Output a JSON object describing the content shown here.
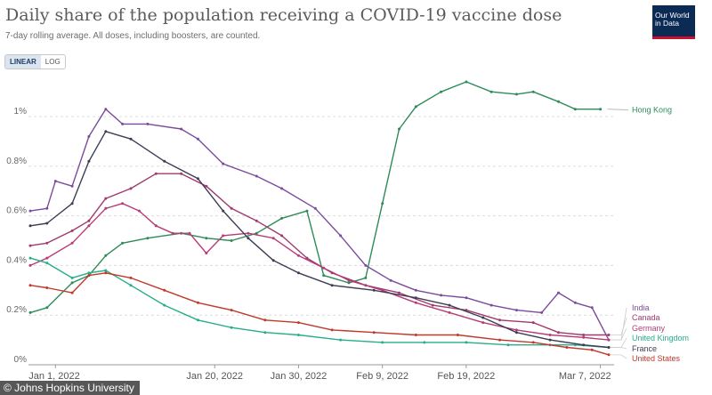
{
  "title": "Daily share of the population receiving a COVID-19 vaccine dose",
  "subtitle": "7-day rolling average. All doses, including boosters, are counted.",
  "logo": {
    "line1": "Our World",
    "line2": "in Data"
  },
  "scale_toggle": {
    "linear_label": "LINEAR",
    "log_label": "LOG",
    "selected": "LINEAR"
  },
  "credit": "© Johns Hopkins University",
  "chart_data": {
    "type": "line",
    "x_unit": "date",
    "x_start": "2021-12-29",
    "x_end": "2022-03-08",
    "xticks": [
      {
        "date": "2022-01-01",
        "label": "Jan 1, 2022"
      },
      {
        "date": "2022-01-20",
        "label": "Jan 20, 2022"
      },
      {
        "date": "2022-01-30",
        "label": "Jan 30, 2022"
      },
      {
        "date": "2022-02-09",
        "label": "Feb 9, 2022"
      },
      {
        "date": "2022-02-19",
        "label": "Feb 19, 2022"
      },
      {
        "date": "2022-03-07",
        "label": "Mar 7, 2022"
      }
    ],
    "yticks": [
      {
        "value": 0,
        "label": "0%"
      },
      {
        "value": 0.2,
        "label": "0.2%"
      },
      {
        "value": 0.4,
        "label": "0.4%"
      },
      {
        "value": 0.6,
        "label": "0.6%"
      },
      {
        "value": 0.8,
        "label": "0.8%"
      },
      {
        "value": 1.0,
        "label": "1%"
      }
    ],
    "ylim": [
      0,
      1.14
    ],
    "grid": "horizontal dashed",
    "legend": "right, labels at line ends",
    "series": [
      {
        "name": "Hong Kong",
        "color": "#2e8b57",
        "points": [
          [
            "2021-12-29",
            0.21
          ],
          [
            "2021-12-31",
            0.23
          ],
          [
            "2022-01-03",
            0.33
          ],
          [
            "2022-01-05",
            0.36
          ],
          [
            "2022-01-07",
            0.44
          ],
          [
            "2022-01-09",
            0.49
          ],
          [
            "2022-01-12",
            0.51
          ],
          [
            "2022-01-16",
            0.53
          ],
          [
            "2022-01-19",
            0.51
          ],
          [
            "2022-01-22",
            0.5
          ],
          [
            "2022-01-25",
            0.53
          ],
          [
            "2022-01-28",
            0.59
          ],
          [
            "2022-01-31",
            0.62
          ],
          [
            "2022-02-02",
            0.36
          ],
          [
            "2022-02-05",
            0.33
          ],
          [
            "2022-02-07",
            0.35
          ],
          [
            "2022-02-09",
            0.65
          ],
          [
            "2022-02-11",
            0.95
          ],
          [
            "2022-02-13",
            1.04
          ],
          [
            "2022-02-16",
            1.1
          ],
          [
            "2022-02-19",
            1.14
          ],
          [
            "2022-02-22",
            1.1
          ],
          [
            "2022-02-25",
            1.09
          ],
          [
            "2022-02-27",
            1.1
          ],
          [
            "2022-03-02",
            1.06
          ],
          [
            "2022-03-04",
            1.03
          ],
          [
            "2022-03-07",
            1.03
          ]
        ]
      },
      {
        "name": "India",
        "color": "#7b4b9c",
        "points": [
          [
            "2021-12-29",
            0.62
          ],
          [
            "2021-12-31",
            0.63
          ],
          [
            "2022-01-01",
            0.74
          ],
          [
            "2022-01-03",
            0.72
          ],
          [
            "2022-01-05",
            0.92
          ],
          [
            "2022-01-07",
            1.03
          ],
          [
            "2022-01-09",
            0.97
          ],
          [
            "2022-01-12",
            0.97
          ],
          [
            "2022-01-16",
            0.95
          ],
          [
            "2022-01-18",
            0.91
          ],
          [
            "2022-01-21",
            0.81
          ],
          [
            "2022-01-25",
            0.76
          ],
          [
            "2022-01-28",
            0.71
          ],
          [
            "2022-02-01",
            0.63
          ],
          [
            "2022-02-04",
            0.52
          ],
          [
            "2022-02-07",
            0.4
          ],
          [
            "2022-02-10",
            0.34
          ],
          [
            "2022-02-13",
            0.3
          ],
          [
            "2022-02-16",
            0.28
          ],
          [
            "2022-02-19",
            0.27
          ],
          [
            "2022-02-22",
            0.24
          ],
          [
            "2022-02-25",
            0.22
          ],
          [
            "2022-02-28",
            0.21
          ],
          [
            "2022-03-02",
            0.29
          ],
          [
            "2022-03-04",
            0.25
          ],
          [
            "2022-03-06",
            0.23
          ],
          [
            "2022-03-08",
            0.1
          ]
        ]
      },
      {
        "name": "Canada",
        "color": "#a03a6e",
        "points": [
          [
            "2021-12-29",
            0.48
          ],
          [
            "2021-12-31",
            0.49
          ],
          [
            "2022-01-03",
            0.54
          ],
          [
            "2022-01-05",
            0.58
          ],
          [
            "2022-01-07",
            0.67
          ],
          [
            "2022-01-10",
            0.71
          ],
          [
            "2022-01-13",
            0.77
          ],
          [
            "2022-01-16",
            0.77
          ],
          [
            "2022-01-19",
            0.72
          ],
          [
            "2022-01-22",
            0.63
          ],
          [
            "2022-01-25",
            0.58
          ],
          [
            "2022-01-28",
            0.52
          ],
          [
            "2022-01-31",
            0.43
          ],
          [
            "2022-02-03",
            0.37
          ],
          [
            "2022-02-07",
            0.32
          ],
          [
            "2022-02-11",
            0.29
          ],
          [
            "2022-02-15",
            0.24
          ],
          [
            "2022-02-19",
            0.22
          ],
          [
            "2022-02-23",
            0.18
          ],
          [
            "2022-02-27",
            0.17
          ],
          [
            "2022-03-02",
            0.13
          ],
          [
            "2022-03-05",
            0.12
          ],
          [
            "2022-03-08",
            0.12
          ]
        ]
      },
      {
        "name": "Germany",
        "color": "#b83b78",
        "points": [
          [
            "2021-12-29",
            0.4
          ],
          [
            "2021-12-31",
            0.43
          ],
          [
            "2022-01-03",
            0.49
          ],
          [
            "2022-01-05",
            0.56
          ],
          [
            "2022-01-07",
            0.63
          ],
          [
            "2022-01-09",
            0.65
          ],
          [
            "2022-01-11",
            0.62
          ],
          [
            "2022-01-13",
            0.56
          ],
          [
            "2022-01-15",
            0.53
          ],
          [
            "2022-01-17",
            0.53
          ],
          [
            "2022-01-19",
            0.45
          ],
          [
            "2022-01-21",
            0.52
          ],
          [
            "2022-01-24",
            0.53
          ],
          [
            "2022-01-27",
            0.51
          ],
          [
            "2022-01-30",
            0.44
          ],
          [
            "2022-02-02",
            0.39
          ],
          [
            "2022-02-05",
            0.34
          ],
          [
            "2022-02-09",
            0.3
          ],
          [
            "2022-02-13",
            0.25
          ],
          [
            "2022-02-17",
            0.21
          ],
          [
            "2022-02-21",
            0.17
          ],
          [
            "2022-02-25",
            0.14
          ],
          [
            "2022-03-01",
            0.12
          ],
          [
            "2022-03-05",
            0.11
          ],
          [
            "2022-03-08",
            0.1
          ]
        ]
      },
      {
        "name": "United Kingdom",
        "color": "#27ae8a",
        "points": [
          [
            "2021-12-29",
            0.43
          ],
          [
            "2021-12-31",
            0.41
          ],
          [
            "2022-01-03",
            0.35
          ],
          [
            "2022-01-05",
            0.37
          ],
          [
            "2022-01-07",
            0.38
          ],
          [
            "2022-01-10",
            0.32
          ],
          [
            "2022-01-14",
            0.24
          ],
          [
            "2022-01-18",
            0.18
          ],
          [
            "2022-01-22",
            0.15
          ],
          [
            "2022-01-26",
            0.13
          ],
          [
            "2022-01-30",
            0.12
          ],
          [
            "2022-02-04",
            0.1
          ],
          [
            "2022-02-09",
            0.09
          ],
          [
            "2022-02-14",
            0.09
          ],
          [
            "2022-02-19",
            0.09
          ],
          [
            "2022-02-24",
            0.08
          ],
          [
            "2022-03-01",
            0.08
          ],
          [
            "2022-03-04",
            0.08
          ],
          [
            "2022-03-08",
            0.07
          ]
        ]
      },
      {
        "name": "France",
        "color": "#3d3d55",
        "points": [
          [
            "2021-12-29",
            0.56
          ],
          [
            "2021-12-31",
            0.57
          ],
          [
            "2022-01-03",
            0.65
          ],
          [
            "2022-01-05",
            0.82
          ],
          [
            "2022-01-07",
            0.94
          ],
          [
            "2022-01-10",
            0.91
          ],
          [
            "2022-01-14",
            0.82
          ],
          [
            "2022-01-18",
            0.75
          ],
          [
            "2022-01-21",
            0.62
          ],
          [
            "2022-01-24",
            0.51
          ],
          [
            "2022-01-27",
            0.42
          ],
          [
            "2022-01-30",
            0.37
          ],
          [
            "2022-02-03",
            0.32
          ],
          [
            "2022-02-08",
            0.3
          ],
          [
            "2022-02-13",
            0.27
          ],
          [
            "2022-02-17",
            0.24
          ],
          [
            "2022-02-21",
            0.19
          ],
          [
            "2022-02-25",
            0.13
          ],
          [
            "2022-03-01",
            0.1
          ],
          [
            "2022-03-05",
            0.08
          ],
          [
            "2022-03-08",
            0.07
          ]
        ]
      },
      {
        "name": "United States",
        "color": "#c0392b",
        "points": [
          [
            "2021-12-29",
            0.32
          ],
          [
            "2021-12-31",
            0.31
          ],
          [
            "2022-01-03",
            0.29
          ],
          [
            "2022-01-05",
            0.36
          ],
          [
            "2022-01-07",
            0.37
          ],
          [
            "2022-01-10",
            0.35
          ],
          [
            "2022-01-14",
            0.3
          ],
          [
            "2022-01-18",
            0.25
          ],
          [
            "2022-01-22",
            0.22
          ],
          [
            "2022-01-26",
            0.18
          ],
          [
            "2022-01-30",
            0.17
          ],
          [
            "2022-02-03",
            0.14
          ],
          [
            "2022-02-08",
            0.13
          ],
          [
            "2022-02-13",
            0.12
          ],
          [
            "2022-02-18",
            0.12
          ],
          [
            "2022-02-23",
            0.1
          ],
          [
            "2022-02-27",
            0.09
          ],
          [
            "2022-03-03",
            0.07
          ],
          [
            "2022-03-06",
            0.06
          ],
          [
            "2022-03-08",
            0.04
          ]
        ]
      }
    ]
  }
}
